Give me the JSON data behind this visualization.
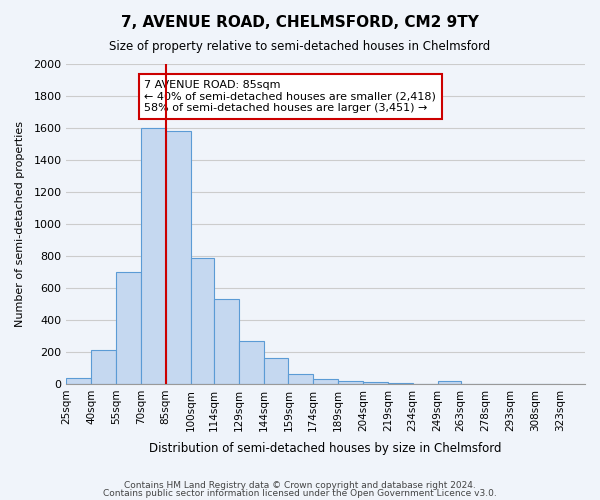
{
  "title": "7, AVENUE ROAD, CHELMSFORD, CM2 9TY",
  "subtitle": "Size of property relative to semi-detached houses in Chelmsford",
  "xlabel": "Distribution of semi-detached houses by size in Chelmsford",
  "ylabel": "Number of semi-detached properties",
  "bar_color": "#c5d8f0",
  "bar_edge_color": "#5b9bd5",
  "grid_color": "#cccccc",
  "bg_color": "#f0f4fa",
  "property_line_color": "#cc0000",
  "property_sqm": 85,
  "annotation_title": "7 AVENUE ROAD: 85sqm",
  "annotation_line1": "← 40% of semi-detached houses are smaller (2,418)",
  "annotation_line2": "58% of semi-detached houses are larger (3,451) →",
  "annotation_box_color": "#ffffff",
  "annotation_box_edge": "#cc0000",
  "categories": [
    "25sqm",
    "40sqm",
    "55sqm",
    "70sqm",
    "85sqm",
    "100sqm",
    "114sqm",
    "129sqm",
    "144sqm",
    "159sqm",
    "174sqm",
    "189sqm",
    "204sqm",
    "219sqm",
    "234sqm",
    "249sqm",
    "263sqm",
    "278sqm",
    "293sqm",
    "308sqm",
    "323sqm"
  ],
  "bin_edges": [
    25,
    40,
    55,
    70,
    85,
    100,
    114,
    129,
    144,
    159,
    174,
    189,
    204,
    219,
    234,
    249,
    263,
    278,
    293,
    308,
    323
  ],
  "values": [
    35,
    215,
    700,
    1600,
    1580,
    790,
    530,
    270,
    165,
    65,
    30,
    20,
    15,
    5,
    0,
    20,
    0,
    0,
    0,
    0
  ],
  "ylim": [
    0,
    2000
  ],
  "yticks": [
    0,
    200,
    400,
    600,
    800,
    1000,
    1200,
    1400,
    1600,
    1800,
    2000
  ],
  "footer_line1": "Contains HM Land Registry data © Crown copyright and database right 2024.",
  "footer_line2": "Contains public sector information licensed under the Open Government Licence v3.0."
}
